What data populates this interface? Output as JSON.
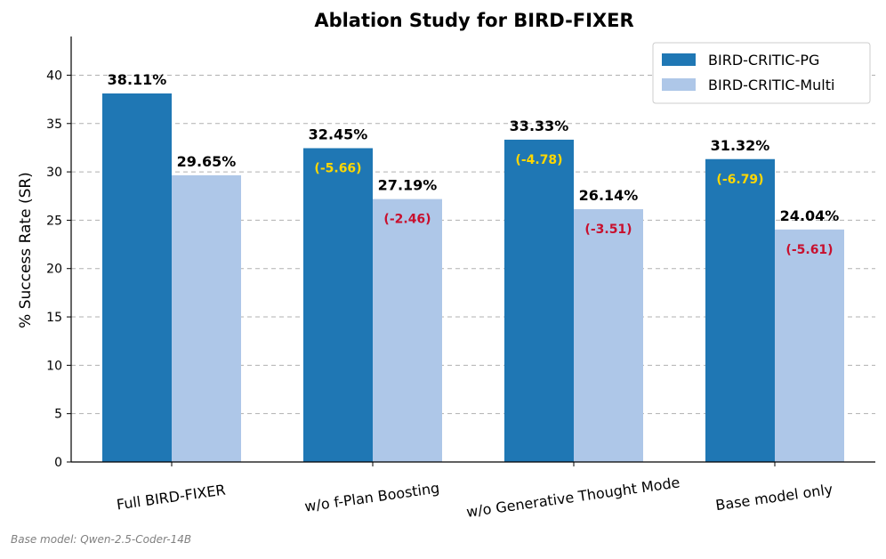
{
  "chart_data": {
    "type": "bar",
    "title": "Ablation Study for BIRD-FIXER",
    "xlabel": "",
    "ylabel": "% Success Rate (SR)",
    "ylim": [
      0,
      44
    ],
    "yticks": [
      0,
      5,
      10,
      15,
      20,
      25,
      30,
      35,
      40
    ],
    "grid": true,
    "legend_position": "top-right",
    "categories": [
      "Full BIRD-FIXER",
      "w/o f-Plan Boosting",
      "w/o Generative Thought Mode",
      "Base model only"
    ],
    "series": [
      {
        "name": "BIRD-CRITIC-PG",
        "color": "#1f77b4",
        "values": [
          38.11,
          32.45,
          33.33,
          31.32
        ],
        "labels": [
          "38.11%",
          "32.45%",
          "33.33%",
          "31.32%"
        ],
        "deltas": [
          "",
          "(-5.66)",
          "(-4.78)",
          "(-6.79)"
        ],
        "delta_color": "#ffd700"
      },
      {
        "name": "BIRD-CRITIC-Multi",
        "color": "#aec7e8",
        "values": [
          29.65,
          27.19,
          26.14,
          24.04
        ],
        "labels": [
          "29.65%",
          "27.19%",
          "26.14%",
          "24.04%"
        ],
        "deltas": [
          "",
          "(-2.46)",
          "(-3.51)",
          "(-5.61)"
        ],
        "delta_color": "#c8102e"
      }
    ]
  },
  "footnote": "Base model: Qwen-2.5-Coder-14B"
}
